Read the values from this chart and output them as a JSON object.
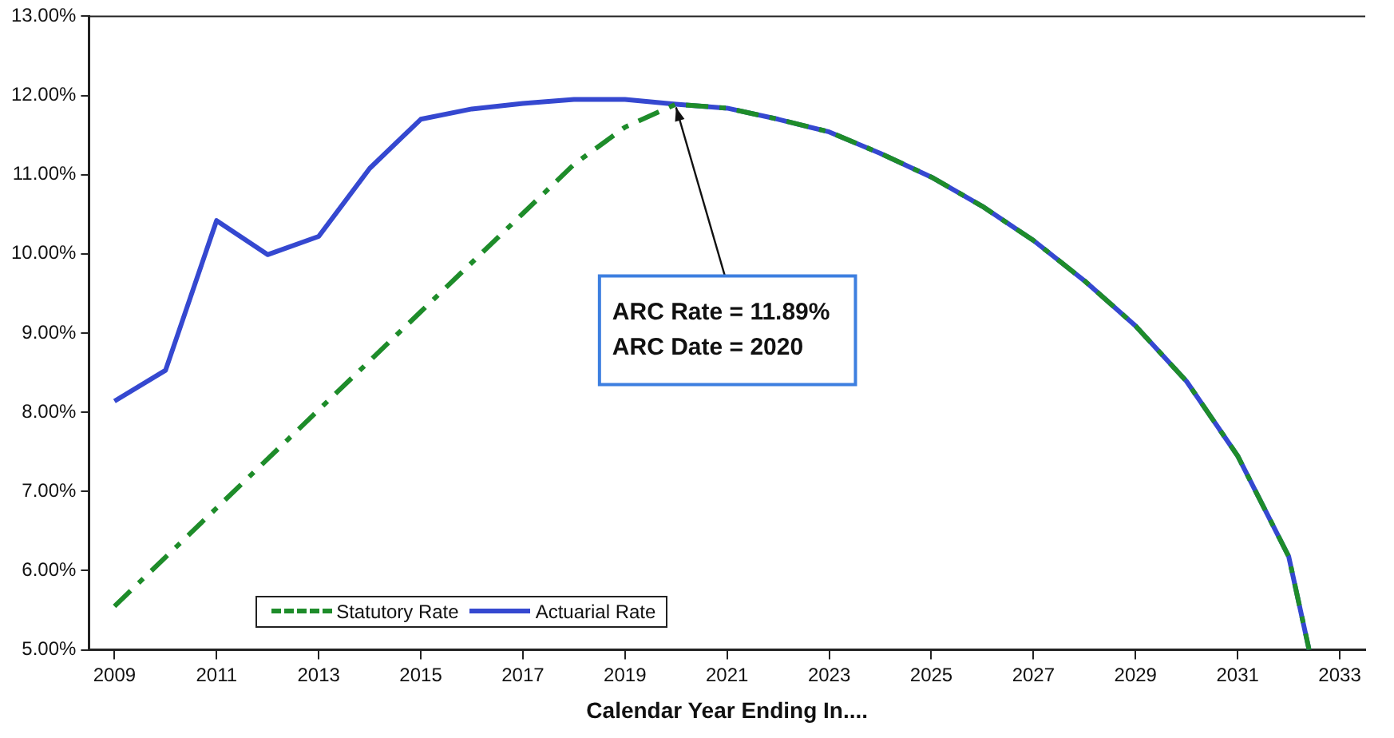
{
  "chart_data": {
    "type": "line",
    "xlabel": "Calendar Year Ending In....",
    "xlim": [
      2008.5,
      2033.5
    ],
    "xticks": [
      2009,
      2011,
      2013,
      2015,
      2017,
      2019,
      2021,
      2023,
      2025,
      2027,
      2029,
      2031,
      2033
    ],
    "ylim": [
      5,
      13
    ],
    "yticks": [
      {
        "value": 5,
        "label": "5.00%"
      },
      {
        "value": 6,
        "label": "6.00%"
      },
      {
        "value": 7,
        "label": "7.00%"
      },
      {
        "value": 8,
        "label": "8.00%"
      },
      {
        "value": 9,
        "label": "9.00%"
      },
      {
        "value": 10,
        "label": "10.00%"
      },
      {
        "value": 11,
        "label": "11.00%"
      },
      {
        "value": 12,
        "label": "12.00%"
      },
      {
        "value": 13,
        "label": "13.00%"
      }
    ],
    "grid": false,
    "legend": "bottom left",
    "marker": "none",
    "series": [
      {
        "name": "Statutory Rate",
        "color": "#1e8c2a",
        "line_style": "dashed",
        "x": [
          2009,
          2010,
          2011,
          2012,
          2013,
          2014,
          2015,
          2016,
          2017,
          2018,
          2019,
          2020,
          2021,
          2022,
          2023,
          2024,
          2025,
          2026,
          2027,
          2028,
          2029,
          2030,
          2031,
          2032,
          2032.4
        ],
        "values": [
          5.55,
          6.17,
          6.79,
          7.41,
          8.03,
          8.65,
          9.27,
          9.89,
          10.51,
          11.13,
          11.6,
          11.89,
          11.84,
          11.7,
          11.54,
          11.27,
          10.97,
          10.6,
          10.17,
          9.66,
          9.09,
          8.39,
          7.45,
          6.18,
          5.0
        ]
      },
      {
        "name": "Actuarial Rate",
        "color": "#3548d0",
        "line_style": "solid",
        "x": [
          2009,
          2010,
          2011,
          2012,
          2013,
          2014,
          2015,
          2016,
          2017,
          2018,
          2019,
          2020,
          2021,
          2022,
          2023,
          2024,
          2025,
          2026,
          2027,
          2028,
          2029,
          2030,
          2031,
          2032,
          2032.4
        ],
        "values": [
          8.14,
          8.53,
          10.42,
          9.99,
          10.22,
          11.08,
          11.7,
          11.83,
          11.9,
          11.95,
          11.95,
          11.89,
          11.84,
          11.7,
          11.54,
          11.27,
          10.97,
          10.6,
          10.17,
          9.66,
          9.09,
          8.39,
          7.45,
          6.18,
          5.0
        ]
      }
    ],
    "annotations": [
      {
        "text": "ARC Rate = 11.89%\nARC Date = 2020",
        "x": 2020,
        "y": 11.89
      }
    ]
  }
}
